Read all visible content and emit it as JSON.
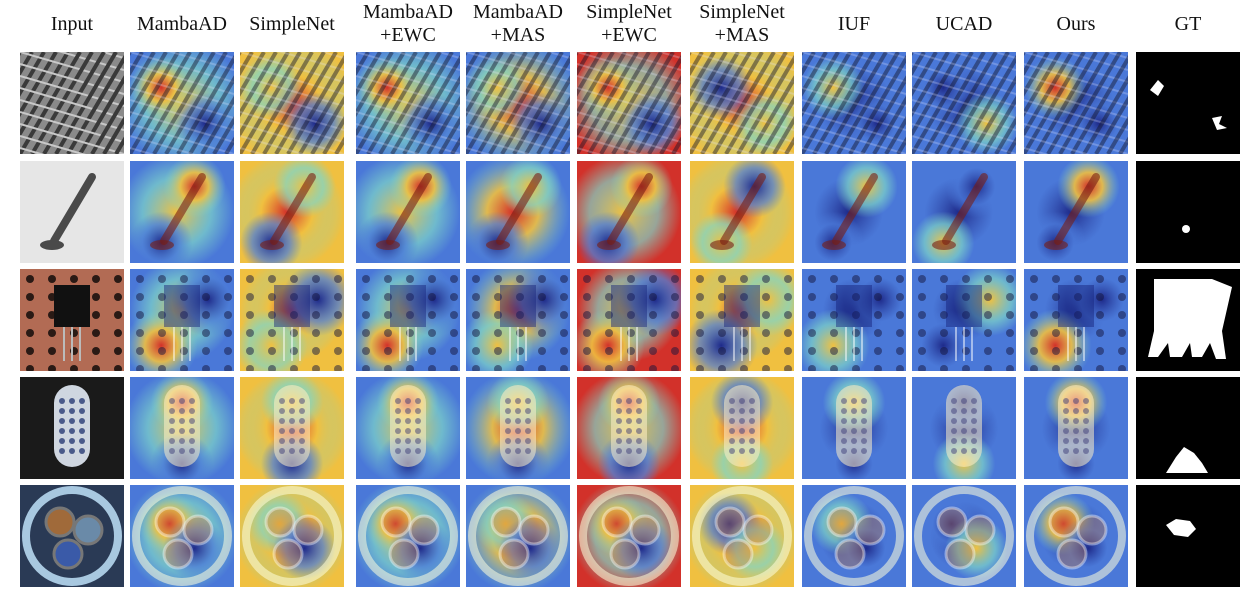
{
  "columns": [
    {
      "id": "input",
      "lines": [
        "Input"
      ]
    },
    {
      "id": "mambaad",
      "lines": [
        "MambaAD"
      ]
    },
    {
      "id": "simplenet",
      "lines": [
        "SimpleNet"
      ]
    },
    {
      "id": "mambaad-ewc",
      "lines": [
        "MambaAD",
        "+EWC"
      ]
    },
    {
      "id": "mambaad-mas",
      "lines": [
        "MambaAD",
        "+MAS"
      ]
    },
    {
      "id": "simplenet-ewc",
      "lines": [
        "SimpleNet",
        "+EWC"
      ]
    },
    {
      "id": "simplenet-mas",
      "lines": [
        "SimpleNet",
        "+MAS"
      ]
    },
    {
      "id": "iuf",
      "lines": [
        "IUF"
      ]
    },
    {
      "id": "ucad",
      "lines": [
        "UCAD"
      ]
    },
    {
      "id": "ours",
      "lines": [
        "Ours"
      ]
    },
    {
      "id": "gt",
      "lines": [
        "GT"
      ]
    }
  ],
  "rows": [
    {
      "id": "grid",
      "input_bg": "#8a8a8a"
    },
    {
      "id": "screw",
      "input_bg": "#e6e6e6"
    },
    {
      "id": "transistor",
      "input_bg": "#b26b54"
    },
    {
      "id": "toothbrush",
      "input_bg": "#1a1a1a"
    },
    {
      "id": "cable",
      "input_bg": "#2a3a55"
    }
  ],
  "colors": {
    "hot": "#d2312a",
    "warm": "#f0c040",
    "mid": "#7fd6c8",
    "cool": "#4a78d8",
    "cold": "#1e2a8a",
    "mask": "#ffffff",
    "mask_bg": "#000000"
  }
}
